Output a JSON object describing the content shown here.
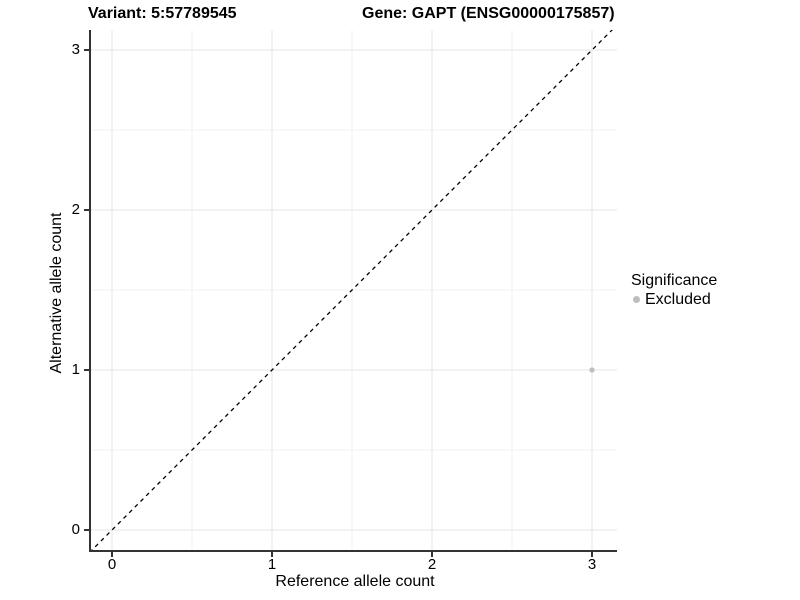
{
  "titles": {
    "variant": "Variant: 5:57789545",
    "gene": "Gene: GAPT (ENSG00000175857)"
  },
  "axes": {
    "x": {
      "label": "Reference allele count",
      "ticks": [
        "0",
        "1",
        "2",
        "3"
      ]
    },
    "y": {
      "label": "Alternative allele count",
      "ticks": [
        "0",
        "1",
        "2",
        "3"
      ]
    }
  },
  "legend": {
    "title": "Significance",
    "items": [
      {
        "label": "Excluded",
        "color": "#bdbdbd"
      }
    ]
  },
  "colors": {
    "background": "#ffffff",
    "grid_major": "#e6e6e6",
    "grid_minor": "#f2f2f2",
    "axis": "#333333",
    "reference_line": "#000000",
    "point": "#bdbdbd"
  },
  "chart_data": {
    "type": "scatter",
    "title": "Variant: 5:57789545 | Gene: GAPT (ENSG00000175857)",
    "xlabel": "Reference allele count",
    "ylabel": "Alternative allele count",
    "xlim": [
      -0.14,
      3.16
    ],
    "ylim": [
      -0.14,
      3.13
    ],
    "x_ticks": [
      0,
      1,
      2,
      3
    ],
    "y_ticks": [
      0,
      1,
      2,
      3
    ],
    "x_minor": [
      0.5,
      1.5,
      2.5
    ],
    "y_minor": [
      0.5,
      1.5,
      2.5
    ],
    "grid": "on",
    "legend_position": "right",
    "reference_line": {
      "type": "identity",
      "style": "dashed",
      "color": "#000000"
    },
    "series": [
      {
        "name": "Excluded",
        "color": "#bdbdbd",
        "points": [
          {
            "x": 3,
            "y": 1
          }
        ]
      }
    ]
  }
}
